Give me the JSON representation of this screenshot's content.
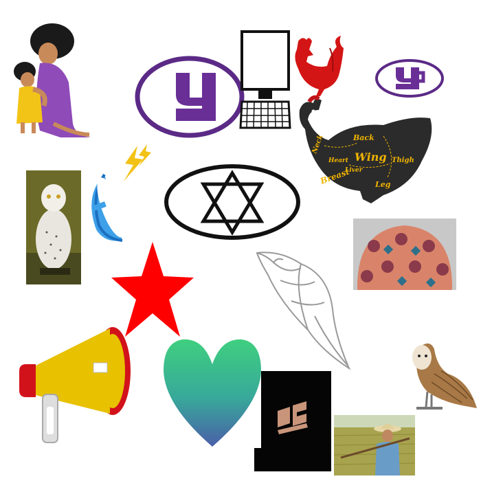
{
  "canvas": {
    "background": "#ffffff"
  },
  "items": [
    {
      "name": "mother-hugging-child-illustration",
      "colors": {
        "dress": "#8f4bb8",
        "child": "#f2c418",
        "skin": "#c98a5a",
        "hair": "#1a1a1a"
      }
    },
    {
      "name": "purple-y-emblem",
      "colors": {
        "ring": "#5b2a86",
        "glyph": "#6a2f96"
      }
    },
    {
      "name": "computer-monitor-keyboard-icon",
      "colors": {
        "stroke": "#111111"
      }
    },
    {
      "name": "red-rooster-silhouette",
      "colors": {
        "fill": "#d41515"
      }
    },
    {
      "name": "small-purple-emblem",
      "colors": {
        "ring": "#5b2a86",
        "glyph": "#6a2f96"
      }
    },
    {
      "name": "chicken-meat-cuts-diagram",
      "colors": {
        "body": "#2b2b2b",
        "text": "#f0b400",
        "comb": "#c0141a"
      },
      "labels": [
        "Neck",
        "Back",
        "Wing",
        "Heart",
        "Liver",
        "Thigh",
        "Breast",
        "Leg"
      ]
    },
    {
      "name": "snowy-owl-photo",
      "colors": {
        "bg": "#6c6a28",
        "owl": "#e9e6df"
      }
    },
    {
      "name": "satellite-dish-icon",
      "colors": {
        "dish": "#3da0e8",
        "bolt": "#f3c217"
      }
    },
    {
      "name": "star-of-david-emblem",
      "colors": {
        "stroke": "#111111"
      }
    },
    {
      "name": "patterned-cap-photo",
      "colors": {
        "bg": "#c8c8c8",
        "pattern": "#d9846a"
      }
    },
    {
      "name": "red-star-shape",
      "colors": {
        "fill": "#ff0000"
      }
    },
    {
      "name": "conch-shell-outline",
      "colors": {
        "stroke": "#999999"
      }
    },
    {
      "name": "megaphone-icon",
      "colors": {
        "body": "#e8c100",
        "cone": "#d2121a",
        "handle": "#dedede"
      }
    },
    {
      "name": "green-blue-heart-shape",
      "colors": {
        "top": "#3fcf7f",
        "bottom": "#4a5fa8"
      }
    },
    {
      "name": "dark-logo-square",
      "colors": {
        "bg": "#050505",
        "mark": "#c9957a"
      }
    },
    {
      "name": "barn-owl-illustration",
      "colors": {
        "body": "#a87946",
        "face": "#efe4d2"
      }
    },
    {
      "name": "farmer-in-field-photo",
      "colors": {
        "field": "#a8a34e",
        "sky": "#cdd8b8",
        "shirt": "#6a9cc8"
      }
    }
  ]
}
